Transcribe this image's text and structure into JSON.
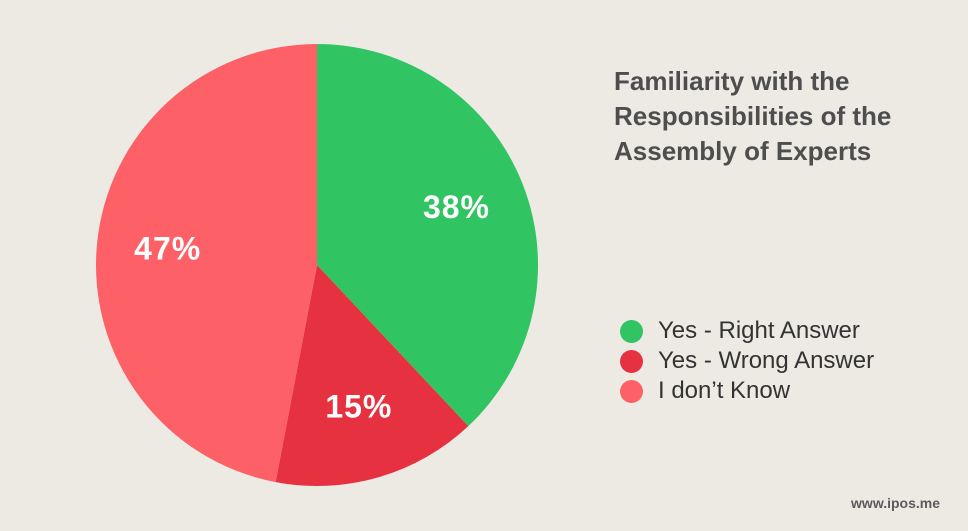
{
  "chart_data": {
    "type": "pie",
    "title": "Familiarity with the Responsibilities of the Assembly of Experts",
    "categories": [
      "Yes - Right Answer",
      "Yes - Wrong Answer",
      "I don’t Know"
    ],
    "values": [
      38,
      15,
      47
    ],
    "value_labels": [
      "38%",
      "15%",
      "47%"
    ],
    "colors": [
      "#31c463",
      "#e63240",
      "#fd6066"
    ],
    "legend": {
      "position": "right",
      "entries": [
        "Yes - Right Answer",
        "Yes - Wrong Answer",
        "I don’t Know"
      ]
    }
  },
  "footer": {
    "text": "www.ipos.me"
  }
}
